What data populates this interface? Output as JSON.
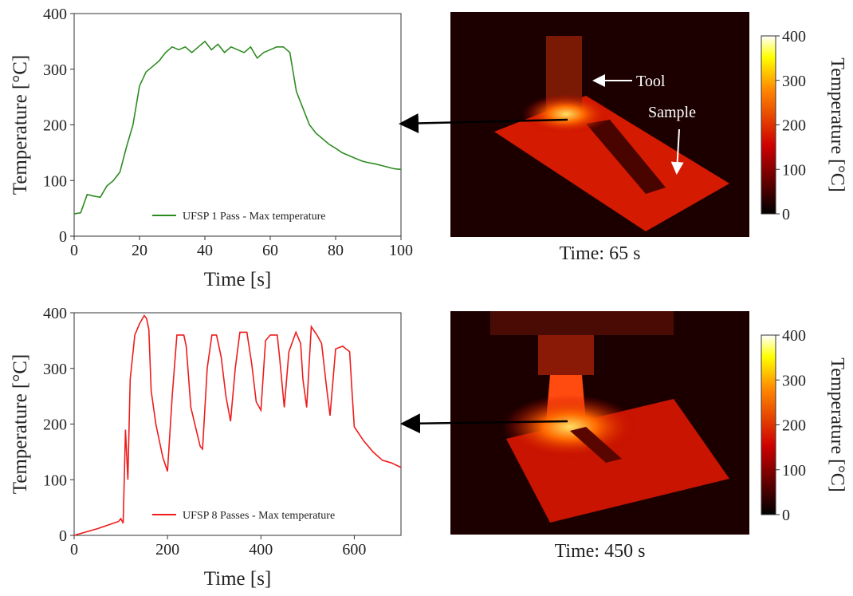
{
  "chart_data": [
    {
      "type": "line",
      "xlabel": "Time [s]",
      "ylabel": "Temperature [°C]",
      "xlim": [
        0,
        100
      ],
      "ylim": [
        0,
        400
      ],
      "xticks": [
        0,
        20,
        40,
        60,
        80,
        100
      ],
      "yticks": [
        0,
        100,
        200,
        300,
        400
      ],
      "legend": "lower right",
      "x": [
        0,
        2,
        4,
        6,
        8,
        10,
        12,
        14,
        16,
        18,
        20,
        22,
        24,
        26,
        28,
        30,
        32,
        34,
        36,
        38,
        40,
        42,
        44,
        46,
        48,
        50,
        52,
        54,
        56,
        58,
        60,
        62,
        64,
        66,
        68,
        70,
        72,
        74,
        76,
        78,
        80,
        82,
        84,
        86,
        88,
        90,
        92,
        94,
        96,
        98,
        100
      ],
      "series": [
        {
          "name": "UFSP 1 Pass - Max temperature",
          "color": "#2e8b22",
          "values": [
            40,
            42,
            75,
            72,
            70,
            90,
            100,
            115,
            160,
            200,
            270,
            295,
            305,
            315,
            330,
            340,
            335,
            340,
            330,
            340,
            350,
            335,
            345,
            330,
            340,
            335,
            330,
            340,
            320,
            330,
            335,
            340,
            340,
            330,
            260,
            230,
            200,
            185,
            175,
            165,
            158,
            150,
            145,
            140,
            135,
            132,
            130,
            127,
            124,
            121,
            120
          ]
        }
      ]
    },
    {
      "type": "thermal",
      "caption": "Time: 65 s",
      "annotations": [
        "Tool",
        "Sample"
      ],
      "colorbar_label": "Temperature [°C]",
      "clim": [
        0,
        400
      ],
      "cticks": [
        0,
        100,
        200,
        300,
        400
      ]
    },
    {
      "type": "line",
      "xlabel": "Time [s]",
      "ylabel": "Temperature [°C]",
      "xlim": [
        0,
        700
      ],
      "ylim": [
        0,
        400
      ],
      "xticks": [
        0,
        200,
        400,
        600
      ],
      "yticks": [
        0,
        100,
        200,
        300,
        400
      ],
      "legend": "lower right",
      "x": [
        0,
        50,
        95,
        100,
        105,
        110,
        115,
        120,
        130,
        140,
        150,
        155,
        160,
        165,
        175,
        190,
        200,
        210,
        220,
        235,
        240,
        250,
        270,
        275,
        285,
        295,
        305,
        315,
        325,
        335,
        345,
        355,
        370,
        380,
        390,
        400,
        410,
        420,
        435,
        440,
        450,
        460,
        475,
        485,
        490,
        498,
        508,
        520,
        530,
        540,
        548,
        560,
        575,
        590,
        595,
        600,
        620,
        640,
        660,
        680,
        700
      ],
      "series": [
        {
          "name": "UFSP 8 Passes - Max temperature",
          "color": "#ee1c1c",
          "values": [
            0,
            12,
            25,
            30,
            22,
            190,
            100,
            280,
            360,
            380,
            395,
            390,
            370,
            260,
            200,
            140,
            115,
            250,
            360,
            360,
            340,
            230,
            160,
            155,
            300,
            360,
            360,
            320,
            250,
            205,
            300,
            365,
            365,
            310,
            240,
            225,
            350,
            360,
            360,
            320,
            230,
            330,
            365,
            345,
            280,
            230,
            375,
            360,
            345,
            270,
            215,
            335,
            340,
            330,
            260,
            195,
            170,
            150,
            135,
            130,
            122
          ]
        }
      ]
    },
    {
      "type": "thermal",
      "caption": "Time: 450 s",
      "annotations": [],
      "colorbar_label": "Temperature [°C]",
      "clim": [
        0,
        400
      ],
      "cticks": [
        0,
        100,
        200,
        300,
        400
      ]
    }
  ]
}
